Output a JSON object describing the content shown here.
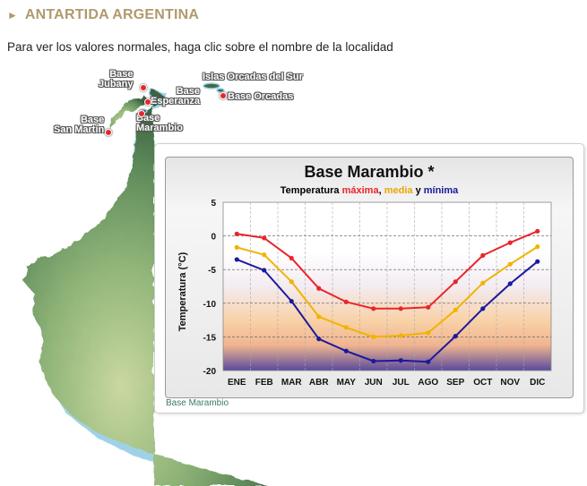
{
  "header": {
    "arrow_icon": "play-triangle-icon",
    "title": "ANTARTIDA ARGENTINA"
  },
  "instruction": "Para ver los valores normales, haga clic sobre el nombre de la localidad",
  "map": {
    "locations": [
      {
        "id": "jubany",
        "line1": "Base",
        "line2": "Jubany"
      },
      {
        "id": "esperanza",
        "line1": "Base",
        "line2": "Esperanza"
      },
      {
        "id": "marambio",
        "line1": "Base",
        "line2": "Marambio"
      },
      {
        "id": "san-martin",
        "line1": "Base",
        "line2": "San Martín"
      },
      {
        "id": "islas-orcadas",
        "line1": "Islas Orcadas del Sur",
        "line2": ""
      },
      {
        "id": "base-orcadas",
        "line1": "Base Orcadas",
        "line2": ""
      }
    ]
  },
  "popup": {
    "link_text": "Base Marambio"
  },
  "chart_data": {
    "type": "line",
    "title": "Base Marambio *",
    "subtitle_parts": [
      {
        "text": "Temperatura ",
        "color": "#000000"
      },
      {
        "text": "máxima",
        "color": "#e8262a"
      },
      {
        "text": ", ",
        "color": "#000000"
      },
      {
        "text": "media",
        "color": "#e8a800"
      },
      {
        "text": " y ",
        "color": "#000000"
      },
      {
        "text": "mínima",
        "color": "#1a1a9c"
      }
    ],
    "ylabel": "Temperatura (°C)",
    "ylim": [
      -20,
      5
    ],
    "yticks": [
      5,
      0,
      -5,
      -10,
      -15,
      -20
    ],
    "categories": [
      "ENE",
      "FEB",
      "MAR",
      "ABR",
      "MAY",
      "JUN",
      "JUL",
      "AGO",
      "SEP",
      "OCT",
      "NOV",
      "DIC"
    ],
    "series": [
      {
        "name": "máxima",
        "color": "#e8262a",
        "values": [
          0.3,
          -0.3,
          -3.3,
          -7.8,
          -9.8,
          -10.8,
          -10.8,
          -10.6,
          -6.8,
          -2.9,
          -1.0,
          0.7
        ]
      },
      {
        "name": "media",
        "color": "#f0b400",
        "values": [
          -1.7,
          -2.8,
          -6.8,
          -12.0,
          -13.6,
          -15.0,
          -14.8,
          -14.4,
          -11.0,
          -7.0,
          -4.2,
          -1.6
        ]
      },
      {
        "name": "mínima",
        "color": "#1a1a9c",
        "values": [
          -3.5,
          -5.1,
          -9.7,
          -15.3,
          -17.1,
          -18.6,
          -18.5,
          -18.7,
          -14.9,
          -10.8,
          -7.1,
          -3.8
        ]
      }
    ],
    "grid": true
  }
}
